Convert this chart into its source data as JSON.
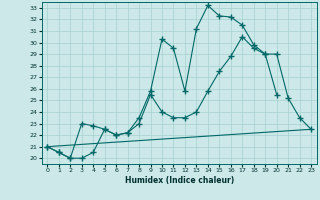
{
  "xlabel": "Humidex (Indice chaleur)",
  "background_color": "#cce8e8",
  "line_color": "#006868",
  "ylim": [
    19.5,
    33.5
  ],
  "xlim": [
    -0.5,
    23.5
  ],
  "yticks": [
    20,
    21,
    22,
    23,
    24,
    25,
    26,
    27,
    28,
    29,
    30,
    31,
    32,
    33
  ],
  "xticks": [
    0,
    1,
    2,
    3,
    4,
    5,
    6,
    7,
    8,
    9,
    10,
    11,
    12,
    13,
    14,
    15,
    16,
    17,
    18,
    19,
    20,
    21,
    22,
    23
  ],
  "line1_x": [
    0,
    1,
    2,
    3,
    4,
    5,
    6,
    7,
    8,
    9,
    10,
    11,
    12,
    13,
    14,
    15,
    16,
    17,
    18,
    19,
    20
  ],
  "line1_y": [
    21.0,
    20.5,
    20.0,
    20.0,
    20.5,
    22.5,
    22.0,
    22.2,
    23.5,
    25.8,
    30.3,
    29.5,
    25.8,
    31.2,
    33.2,
    32.3,
    32.2,
    31.5,
    29.8,
    29.0,
    25.5
  ],
  "line2_x": [
    0,
    1,
    2,
    3,
    4,
    5,
    6,
    7,
    8,
    9,
    10,
    11,
    12,
    13,
    14,
    15,
    16,
    17,
    18,
    19,
    20,
    21,
    22,
    23
  ],
  "line2_y": [
    21.0,
    20.5,
    20.0,
    23.0,
    22.8,
    22.5,
    22.0,
    22.2,
    23.0,
    25.5,
    24.0,
    23.5,
    23.5,
    24.0,
    25.8,
    27.5,
    28.8,
    30.5,
    29.5,
    29.0,
    29.0,
    25.2,
    23.5,
    22.5
  ],
  "line3_x": [
    0,
    23
  ],
  "line3_y": [
    21.0,
    22.5
  ],
  "grid_color": "#a8d0d0",
  "marker": "+",
  "markersize": 4,
  "linewidth": 0.8
}
